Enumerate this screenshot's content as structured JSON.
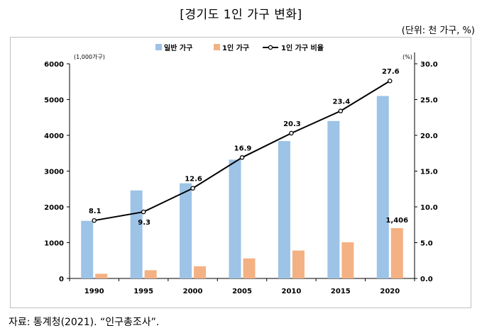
{
  "title": "[경기도 1인 가구 변화]",
  "unit_note": "(단위: 천 가구, %)",
  "source": "자료: 통계청(2021). “인구총조사”.",
  "colors": {
    "general": "#9dc3e6",
    "single": "#f4b183",
    "line": "#000000"
  },
  "chart_data": {
    "type": "bar",
    "categories": [
      "1990",
      "1995",
      "2000",
      "2005",
      "2010",
      "2015",
      "2020"
    ],
    "series": [
      {
        "name": "일반 가구",
        "type": "bar",
        "axis": "left",
        "values": [
          1610,
          2460,
          2660,
          3320,
          3840,
          4400,
          5100
        ]
      },
      {
        "name": "1인 가구",
        "type": "bar",
        "axis": "left",
        "values": [
          130,
          230,
          340,
          560,
          780,
          1010,
          1406
        ]
      },
      {
        "name": "1인 가구 비율",
        "type": "line",
        "axis": "right",
        "values": [
          8.1,
          9.3,
          12.6,
          16.9,
          20.3,
          23.4,
          27.6
        ]
      }
    ],
    "y_left": {
      "min": 0,
      "max": 6000,
      "ticks": [
        0,
        1000,
        2000,
        3000,
        4000,
        5000,
        6000
      ],
      "tick_labels": [
        "0",
        "1000",
        "2000",
        "3000",
        "4000",
        "5000",
        "6000"
      ],
      "unit": "(1,000가구)"
    },
    "y_right": {
      "min": 0,
      "max": 30,
      "ticks": [
        0,
        5,
        10,
        15,
        20,
        25,
        30
      ],
      "tick_labels": [
        "0.0",
        "5.0",
        "10.0",
        "15.0",
        "20.0",
        "25.0",
        "30.0"
      ],
      "unit": "(%)"
    },
    "line_labels": [
      "8.1",
      "9.3",
      "12.6",
      "16.9",
      "20.3",
      "23.4",
      "27.6"
    ],
    "bar_annotation": {
      "series": "1인 가구",
      "index": 6,
      "label": "1,406"
    },
    "legend": {
      "position": "top-center"
    },
    "grid": false
  }
}
